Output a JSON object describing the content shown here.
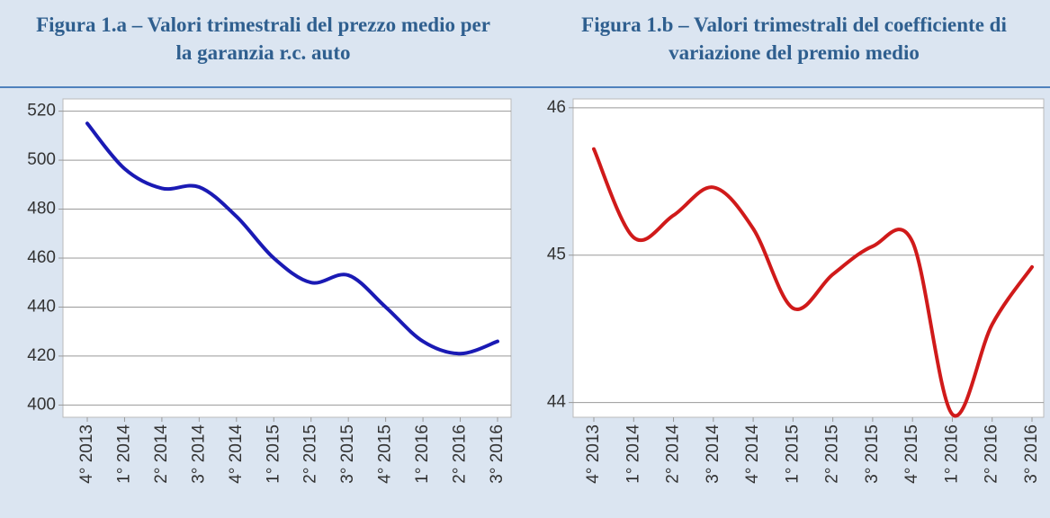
{
  "chart_data": [
    {
      "type": "line",
      "title": "Figura 1.a – Valori trimestrali del prezzo medio per la garanzia r.c. auto",
      "categories": [
        "4° 2013",
        "1° 2014",
        "2° 2014",
        "3° 2014",
        "4° 2014",
        "1° 2015",
        "2° 2015",
        "3° 2015",
        "4° 2015",
        "1° 2016",
        "2° 2016",
        "3° 2016"
      ],
      "values": [
        515,
        496.5,
        488.5,
        489,
        477,
        460,
        450,
        453,
        440,
        426,
        421,
        426
      ],
      "color": "#1a1ab4",
      "ylim": [
        395,
        525
      ],
      "yticks": [
        400,
        420,
        440,
        460,
        480,
        500,
        520
      ],
      "grid": true
    },
    {
      "type": "line",
      "title": "Figura 1.b – Valori trimestrali del coefficiente di variazione del premio medio",
      "categories": [
        "4° 2013",
        "1° 2014",
        "2° 2014",
        "3° 2014",
        "4° 2014",
        "1° 2015",
        "2° 2015",
        "3° 2015",
        "4° 2015",
        "1° 2016",
        "2° 2016",
        "3° 2016"
      ],
      "values": [
        45.72,
        45.12,
        45.27,
        45.46,
        45.18,
        44.64,
        44.87,
        45.06,
        45.09,
        43.92,
        44.53,
        44.92
      ],
      "color": "#d01a1a",
      "ylim": [
        43.9,
        46.06
      ],
      "yticks": [
        44,
        45,
        46
      ],
      "grid": true
    }
  ]
}
